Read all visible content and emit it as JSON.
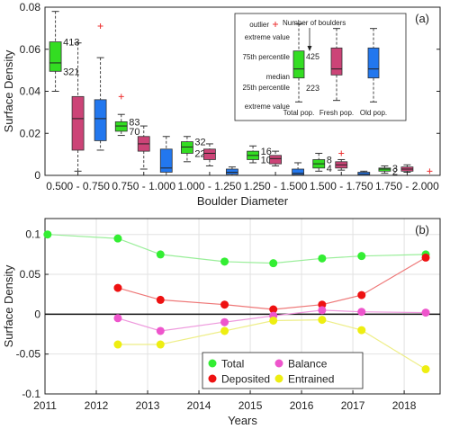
{
  "chart_data": [
    {
      "type": "box",
      "panel_label": "(a)",
      "xlabel": "Boulder Diameter",
      "ylabel": "Surface Density",
      "ylim": [
        0,
        0.08
      ],
      "yticks": [
        0,
        0.02,
        0.04,
        0.06,
        0.08
      ],
      "ytick_labels": [
        "0",
        "0.02",
        "0.04",
        "0.06",
        "0.08"
      ],
      "grid": false,
      "categories": [
        "0.500 - 0.750",
        "0.750 - 1.000",
        "1.000 - 1.250",
        "1.250 - 1.500",
        "1.500 - 1.750",
        "1.750 - 2.000"
      ],
      "series_colors": {
        "total": "#33dd22",
        "fresh": "#cc4477",
        "old": "#2277ee"
      },
      "groups": [
        {
          "total": {
            "lower_whisker": 0.04,
            "q1": 0.0495,
            "median": 0.0535,
            "q3": 0.0635,
            "upper_whisker": 0.078,
            "count_q3": "413",
            "count_median": "321"
          },
          "fresh": {
            "lower_whisker": 0.002,
            "q1": 0.012,
            "median": 0.027,
            "q3": 0.0375,
            "upper_whisker": 0.063
          },
          "old": {
            "lower_whisker": 0.012,
            "q1": 0.0165,
            "median": 0.027,
            "q3": 0.036,
            "upper_whisker": 0.056,
            "outliers": [
              0.071
            ]
          }
        },
        {
          "total": {
            "lower_whisker": 0.019,
            "q1": 0.021,
            "median": 0.0235,
            "q3": 0.0255,
            "upper_whisker": 0.029,
            "count_q3": "83",
            "count_median": "70",
            "outliers": [
              0.0375
            ]
          },
          "fresh": {
            "lower_whisker": 0.003,
            "q1": 0.0115,
            "median": 0.015,
            "q3": 0.0185,
            "upper_whisker": 0.0235
          },
          "old": {
            "lower_whisker": 0.0,
            "q1": 0.0015,
            "median": 0.0035,
            "q3": 0.0125,
            "upper_whisker": 0.0185
          }
        },
        {
          "total": {
            "lower_whisker": 0.0065,
            "q1": 0.0105,
            "median": 0.0135,
            "q3": 0.016,
            "upper_whisker": 0.0185,
            "count_q3": "32",
            "count_median": "22"
          },
          "fresh": {
            "lower_whisker": 0.0045,
            "q1": 0.0075,
            "median": 0.0105,
            "q3": 0.0125,
            "upper_whisker": 0.015
          },
          "old": {
            "lower_whisker": 0.0,
            "q1": 0.0005,
            "median": 0.0015,
            "q3": 0.003,
            "upper_whisker": 0.004
          }
        },
        {
          "total": {
            "lower_whisker": 0.006,
            "q1": 0.0075,
            "median": 0.0095,
            "q3": 0.0115,
            "upper_whisker": 0.014,
            "count_q3": "16",
            "count_median": "10"
          },
          "fresh": {
            "lower_whisker": 0.0045,
            "q1": 0.0055,
            "median": 0.008,
            "q3": 0.0095,
            "upper_whisker": 0.0115
          },
          "old": {
            "lower_whisker": 0.0,
            "q1": 0.0003,
            "median": 0.001,
            "q3": 0.003,
            "upper_whisker": 0.006
          }
        },
        {
          "total": {
            "lower_whisker": 0.002,
            "q1": 0.0035,
            "median": 0.0055,
            "q3": 0.0075,
            "upper_whisker": 0.0105,
            "count_q3": "8",
            "count_median": "4"
          },
          "fresh": {
            "lower_whisker": 0.0025,
            "q1": 0.0035,
            "median": 0.005,
            "q3": 0.0065,
            "upper_whisker": 0.0075,
            "outliers": [
              0.0105
            ]
          },
          "old": {
            "lower_whisker": 0.0,
            "q1": 0.0,
            "median": 0.0005,
            "q3": 0.0015,
            "upper_whisker": 0.002
          }
        },
        {
          "total": {
            "lower_whisker": 0.001,
            "q1": 0.002,
            "median": 0.003,
            "q3": 0.0035,
            "upper_whisker": 0.0045,
            "count_q3": "3",
            "count_median": "2"
          },
          "fresh": {
            "lower_whisker": 0.0015,
            "q1": 0.002,
            "median": 0.003,
            "q3": 0.004,
            "upper_whisker": 0.005
          },
          "old": {
            "outliers": [
              0.002
            ]
          }
        }
      ],
      "legend": {
        "placement": "top-right",
        "outlier_label": "outlier",
        "extreme_value_label": "extreme value",
        "count_label": "Number of boulders",
        "p75_label": "75th percentile",
        "median_label": "median",
        "p25_label": "25th percentile",
        "example_count_top": "425",
        "example_count_bottom": "223",
        "box_labels": [
          "Total pop.",
          "Fresh pop.",
          "Old pop."
        ]
      }
    },
    {
      "type": "line",
      "panel_label": "(b)",
      "xlabel": "Years",
      "ylabel": "Surface Density",
      "xlim": [
        2011,
        2018.7
      ],
      "ylim": [
        -0.1,
        0.12
      ],
      "xticks": [
        2011,
        2012,
        2013,
        2014,
        2015,
        2016,
        2017,
        2018
      ],
      "yticks": [
        -0.1,
        -0.05,
        0,
        0.05,
        0.1
      ],
      "ytick_labels": [
        "-0.1",
        "-0.05",
        "0",
        "0.05",
        "0.1"
      ],
      "grid": true,
      "legend_placement": "bottom-center",
      "series": [
        {
          "name": "Total",
          "color": "#33ee33",
          "line_color": "#99ee99",
          "x": [
            2011.05,
            2012.42,
            2013.25,
            2014.5,
            2015.45,
            2016.4,
            2017.17,
            2018.42
          ],
          "y": [
            0.1,
            0.095,
            0.075,
            0.066,
            0.064,
            0.07,
            0.073,
            0.075
          ]
        },
        {
          "name": "Deposited",
          "color": "#ee1111",
          "line_color": "#ee7777",
          "x": [
            2012.42,
            2013.25,
            2014.5,
            2015.45,
            2016.4,
            2017.17,
            2018.42
          ],
          "y": [
            0.033,
            0.018,
            0.012,
            0.006,
            0.012,
            0.024,
            0.071
          ]
        },
        {
          "name": "Balance",
          "color": "#ee55cc",
          "line_color": "#ee99dd",
          "x": [
            2012.42,
            2013.25,
            2014.5,
            2015.45,
            2016.4,
            2017.17,
            2018.42
          ],
          "y": [
            -0.005,
            -0.021,
            -0.01,
            -0.002,
            0.005,
            0.003,
            0.002
          ]
        },
        {
          "name": "Entrained",
          "color": "#eeee11",
          "line_color": "#eeee88",
          "x": [
            2012.42,
            2013.25,
            2014.5,
            2015.45,
            2016.4,
            2017.17,
            2018.42
          ],
          "y": [
            -0.038,
            -0.038,
            -0.021,
            -0.008,
            -0.007,
            -0.02,
            -0.069
          ]
        }
      ]
    }
  ]
}
